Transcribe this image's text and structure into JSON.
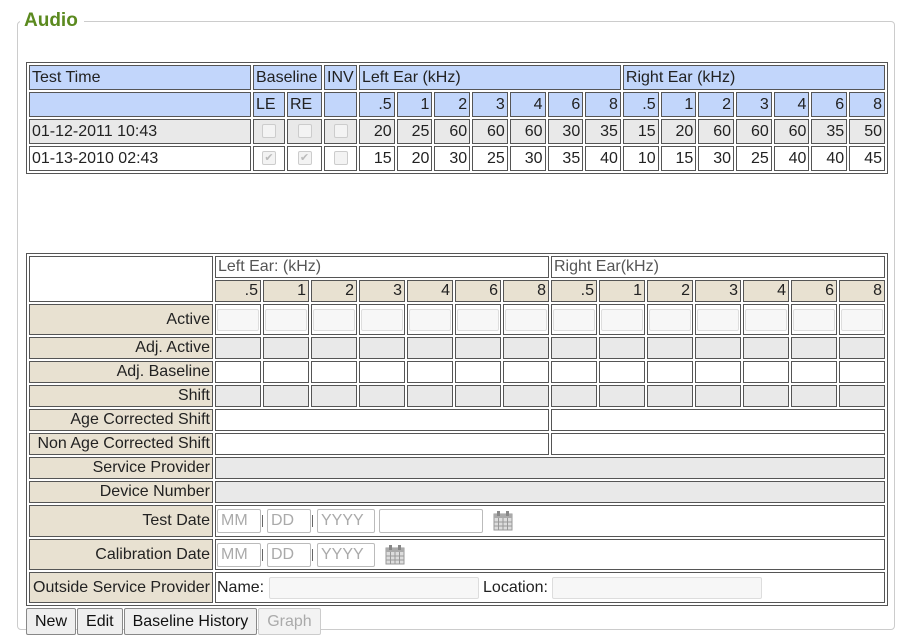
{
  "section_title": "Audio",
  "history": {
    "headers": {
      "test_time": "Test Time",
      "baseline": "Baseline",
      "inv": "INV",
      "left_ear": "Left Ear (kHz)",
      "right_ear": "Right Ear (kHz)",
      "le": "LE",
      "re": "RE"
    },
    "frequencies": [
      ".5",
      "1",
      "2",
      "3",
      "4",
      "6",
      "8"
    ],
    "rows": [
      {
        "time": "01-12-2011 10:43",
        "le": false,
        "re": false,
        "inv": false,
        "left": [
          "20",
          "25",
          "60",
          "60",
          "60",
          "30",
          "35"
        ],
        "right": [
          "15",
          "20",
          "60",
          "60",
          "60",
          "35",
          "50"
        ]
      },
      {
        "time": "01-13-2010 02:43",
        "le": true,
        "re": true,
        "inv": false,
        "left": [
          "15",
          "20",
          "30",
          "25",
          "30",
          "35",
          "40"
        ],
        "right": [
          "10",
          "15",
          "30",
          "25",
          "40",
          "40",
          "45"
        ]
      }
    ]
  },
  "entry": {
    "left_ear": "Left Ear: (kHz)",
    "right_ear": "Right Ear(kHz)",
    "rows": {
      "active": "Active",
      "adj_active": "Adj. Active",
      "adj_baseline": "Adj. Baseline",
      "shift": "Shift",
      "age_corrected": "Age Corrected Shift",
      "non_age_corrected": "Non Age Corrected Shift",
      "service_provider": "Service Provider",
      "device_number": "Device Number",
      "test_date": "Test Date",
      "calibration_date": "Calibration Date",
      "outside_service_provider": "Outside Service Provider"
    },
    "date_placeholders": {
      "mm": "MM",
      "dd": "DD",
      "yyyy": "YYYY"
    },
    "name_label": "Name:",
    "location_label": "Location:"
  },
  "buttons": {
    "new": "New",
    "edit": "Edit",
    "baseline_history": "Baseline History",
    "graph": "Graph"
  },
  "colors": {
    "legend": "#5b8a1f",
    "header_blue": "#c2d6fb",
    "label_beige": "#e8e1d1"
  }
}
